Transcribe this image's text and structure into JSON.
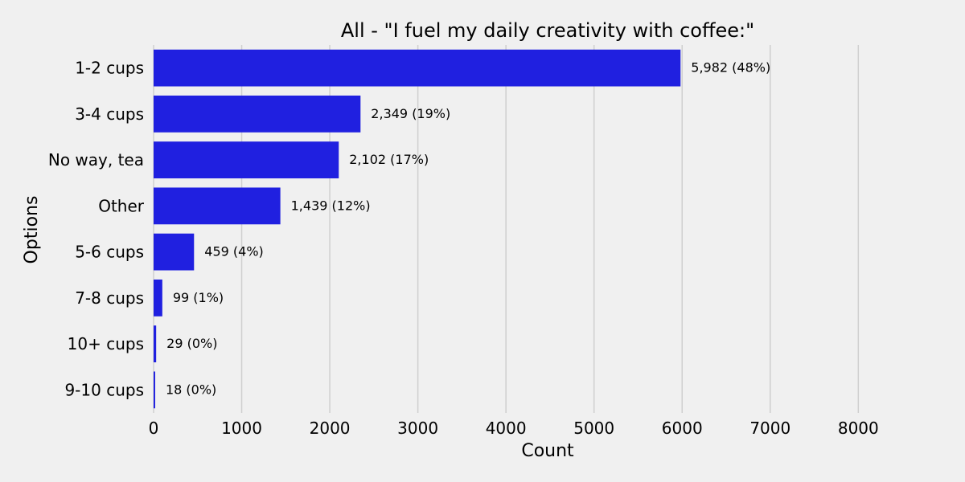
{
  "chart_data": {
    "type": "bar",
    "orientation": "horizontal",
    "title": "All - \"I fuel my daily creativity with coffee:\"",
    "xlabel": "Count",
    "ylabel": "Options",
    "xlim": [
      0,
      8700
    ],
    "xticks": [
      0,
      1000,
      2000,
      3000,
      4000,
      5000,
      6000,
      7000,
      8000
    ],
    "grid": "vertical",
    "bar_color": "#2020e0",
    "categories": [
      "1-2 cups",
      "3-4 cups",
      "No way, tea",
      "Other",
      "5-6 cups",
      "7-8 cups",
      "10+ cups",
      "9-10 cups"
    ],
    "values": [
      5982,
      2349,
      2102,
      1439,
      459,
      99,
      29,
      18
    ],
    "data_labels": [
      "5,982 (48%)",
      "2,349 (19%)",
      "2,102 (17%)",
      "1,439 (12%)",
      "459 (4%)",
      "99 (1%)",
      "29 (0%)",
      "18 (0%)"
    ]
  }
}
